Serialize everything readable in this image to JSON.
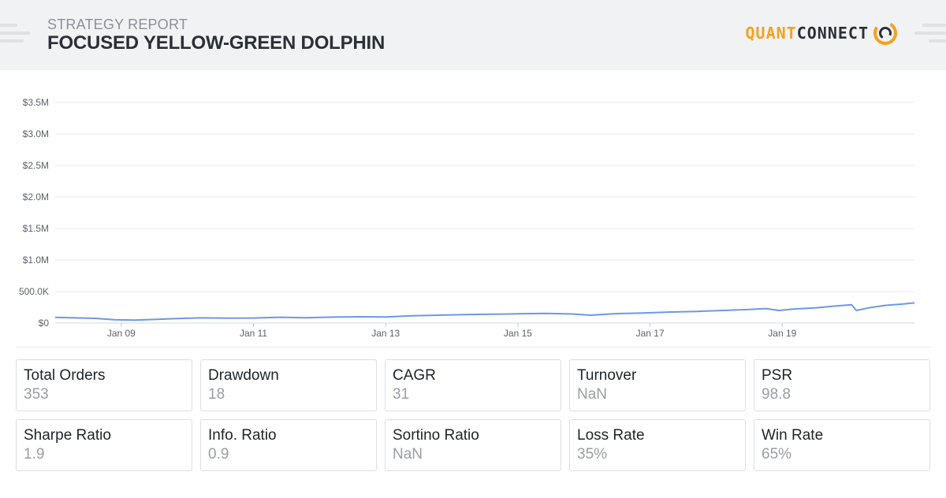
{
  "header": {
    "subtitle": "STRATEGY REPORT",
    "title": "FOCUSED YELLOW-GREEN DOLPHIN",
    "logo_part1": "QUANT",
    "logo_part2": "CONNECT"
  },
  "colors": {
    "line": "#6e97e8",
    "grid": "#e8e9ec",
    "logo_orange": "#f5a11e"
  },
  "chart_data": {
    "type": "line",
    "title": "",
    "xlabel": "",
    "ylabel": "",
    "y_ticks": [
      {
        "value": 0,
        "label": "$0"
      },
      {
        "value": 500000,
        "label": "500.0K"
      },
      {
        "value": 1000000,
        "label": "$1.0M"
      },
      {
        "value": 1500000,
        "label": "$1.5M"
      },
      {
        "value": 2000000,
        "label": "$2.0M"
      },
      {
        "value": 2500000,
        "label": "$2.5M"
      },
      {
        "value": 3000000,
        "label": "$3.0M"
      },
      {
        "value": 3500000,
        "label": "$3.5M"
      }
    ],
    "ylim": [
      0,
      3500000
    ],
    "xlim": [
      2008.0,
      2021.0
    ],
    "x_ticks": [
      {
        "value": 2009.0,
        "label": "Jan 09"
      },
      {
        "value": 2011.0,
        "label": "Jan 11"
      },
      {
        "value": 2013.0,
        "label": "Jan 13"
      },
      {
        "value": 2015.0,
        "label": "Jan 15"
      },
      {
        "value": 2017.0,
        "label": "Jan 17"
      },
      {
        "value": 2019.0,
        "label": "Jan 19"
      }
    ],
    "grid": true,
    "series": [
      {
        "x": [
          2008.0,
          2008.3,
          2008.6,
          2008.9,
          2009.2,
          2009.5,
          2009.8,
          2010.2,
          2010.6,
          2011.0,
          2011.4,
          2011.8,
          2012.2,
          2012.6,
          2013.0,
          2013.4,
          2013.8,
          2014.2,
          2014.6,
          2015.0,
          2015.4,
          2015.8,
          2016.1,
          2016.5,
          2016.9,
          2017.3,
          2017.7,
          2018.1,
          2018.5,
          2018.75,
          2018.95,
          2019.2,
          2019.5,
          2019.8,
          2020.05,
          2020.12,
          2020.3,
          2020.55,
          2020.8,
          2021.0
        ],
        "y": [
          90000,
          82000,
          75000,
          52000,
          48000,
          58000,
          70000,
          82000,
          78000,
          80000,
          92000,
          85000,
          95000,
          100000,
          98000,
          115000,
          125000,
          135000,
          140000,
          148000,
          152000,
          145000,
          125000,
          150000,
          160000,
          175000,
          185000,
          200000,
          215000,
          230000,
          200000,
          225000,
          240000,
          270000,
          290000,
          200000,
          240000,
          280000,
          300000,
          320000
        ]
      }
    ]
  },
  "stats": [
    {
      "label": "Total Orders",
      "value": "353"
    },
    {
      "label": "Drawdown",
      "value": "18"
    },
    {
      "label": "CAGR",
      "value": "31"
    },
    {
      "label": "Turnover",
      "value": "NaN"
    },
    {
      "label": "PSR",
      "value": "98.8"
    },
    {
      "label": "Sharpe Ratio",
      "value": "1.9"
    },
    {
      "label": "Info. Ratio",
      "value": "0.9"
    },
    {
      "label": "Sortino Ratio",
      "value": "NaN"
    },
    {
      "label": "Loss Rate",
      "value": "35%"
    },
    {
      "label": "Win Rate",
      "value": "65%"
    }
  ]
}
